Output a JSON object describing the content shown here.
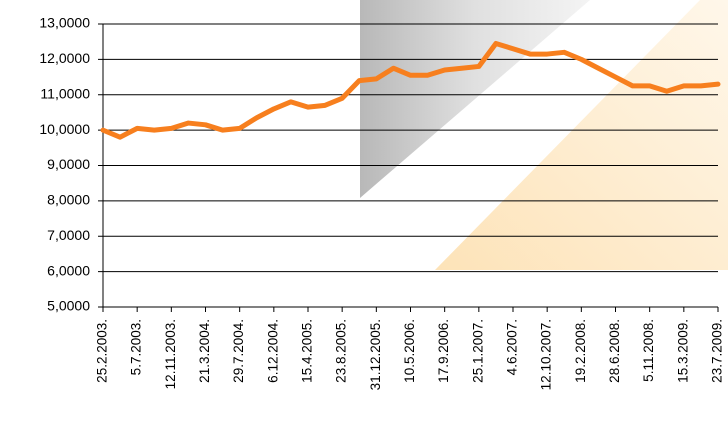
{
  "chart_data": {
    "type": "line",
    "categories": [
      "25.2.2003.",
      null,
      "5.7.2003.",
      null,
      "12.11.2003.",
      null,
      "21.3.2004.",
      null,
      "29.7.2004.",
      null,
      "6.12.2004.",
      null,
      "15.4.2005.",
      null,
      "23.8.2005.",
      null,
      "31.12.2005.",
      null,
      "10.5.2006.",
      null,
      "17.9.2006.",
      null,
      "25.1.2007.",
      null,
      "4.6.2007.",
      null,
      "12.10.2007.",
      null,
      "19.2.2008.",
      null,
      "28.6.2008.",
      null,
      "5.11.2008.",
      null,
      "15.3.2009.",
      null,
      "23.7.2009."
    ],
    "values": [
      10.0,
      9.8,
      10.05,
      10.0,
      10.05,
      10.2,
      10.15,
      10.0,
      10.05,
      10.35,
      10.6,
      10.8,
      10.65,
      10.7,
      10.9,
      11.4,
      11.45,
      11.75,
      11.55,
      11.55,
      11.7,
      11.75,
      11.8,
      12.45,
      12.3,
      12.15,
      12.15,
      12.2,
      12.0,
      11.75,
      11.5,
      11.25,
      11.25,
      11.1,
      11.25,
      11.25,
      11.3
    ],
    "color": "#f77f1e",
    "ylim": [
      5,
      13
    ],
    "yticks": [
      {
        "value": 5,
        "label": "5,0000"
      },
      {
        "value": 6,
        "label": "6,0000"
      },
      {
        "value": 7,
        "label": "7,0000"
      },
      {
        "value": 8,
        "label": "8,0000"
      },
      {
        "value": 9,
        "label": "9,0000"
      },
      {
        "value": 10,
        "label": "10,0000"
      },
      {
        "value": 11,
        "label": "11,0000"
      },
      {
        "value": 12,
        "label": "12,0000"
      },
      {
        "value": 13,
        "label": "13,0000"
      }
    ],
    "grid": true
  }
}
